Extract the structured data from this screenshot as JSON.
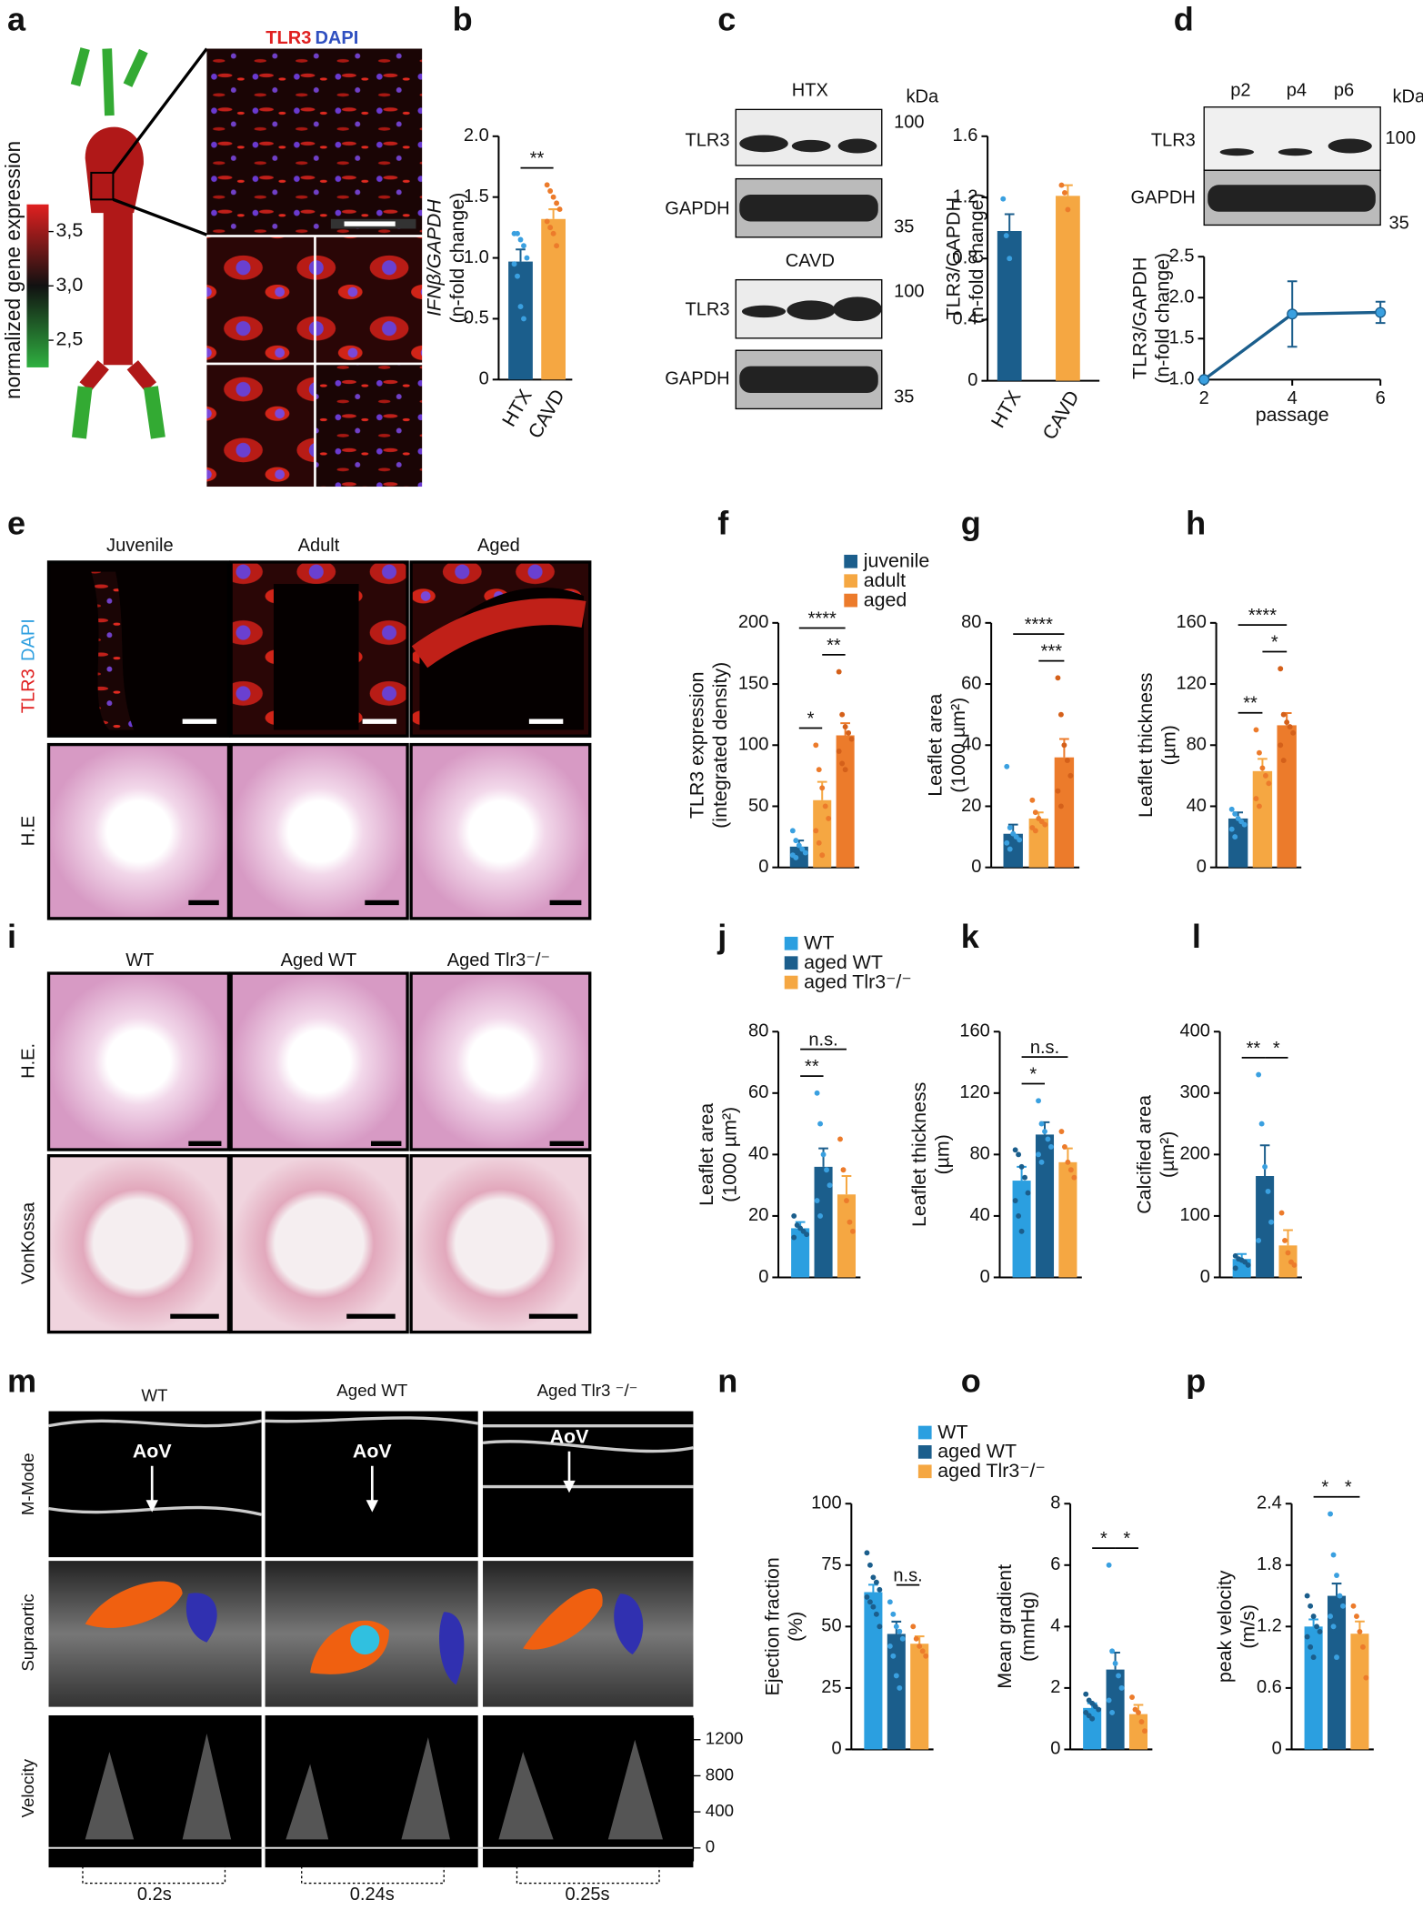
{
  "chart_data": [
    {
      "type": "bar",
      "categories": [
        "HTX",
        "CAVD"
      ],
      "values": [
        0.97,
        1.32
      ],
      "errors": [
        0.1,
        0.08
      ],
      "points": [
        [
          1.2,
          1.2,
          1.15,
          1.1,
          1.0,
          0.95,
          0.85,
          0.6,
          0.5
        ],
        [
          1.6,
          1.55,
          1.5,
          1.45,
          1.4,
          1.3,
          1.25,
          1.2,
          1.1
        ]
      ],
      "colors": [
        "#1b5e8c",
        "#f5a742"
      ],
      "point_colors": [
        "#3aa0e0",
        "#ec7b2b"
      ],
      "ylabel": [
        "IFNβ/GAPDH",
        "(n-fold change)"
      ],
      "ylim": [
        0,
        2
      ],
      "yticks": [
        0,
        0.5,
        {
          "value": 1,
          "label": "1.0"
        },
        1.5,
        {
          "value": 2,
          "label": "2.0"
        }
      ],
      "significance": [
        {
          "label": "**",
          "between": [
            0,
            1
          ]
        }
      ]
    },
    {
      "type": "bar",
      "categories": [
        "HTX",
        "CAVD"
      ],
      "values": [
        0.98,
        1.21
      ],
      "errors": [
        0.11,
        0.07
      ],
      "points": [
        [
          1.19,
          0.95,
          0.8
        ],
        [
          1.28,
          1.23,
          1.12
        ]
      ],
      "colors": [
        "#1b5e8c",
        "#f5a742"
      ],
      "point_colors": [
        "#3aa0e0",
        "#ec7b2b"
      ],
      "ylabel": [
        "TLR3/GAPDH",
        "(n-fold change)"
      ],
      "ylim": [
        0,
        1.6
      ],
      "yticks": [
        0,
        0.4,
        0.8,
        1.2,
        1.6
      ]
    },
    {
      "type": "line",
      "x": [
        2,
        4,
        6
      ],
      "values": [
        1.0,
        1.8,
        1.82
      ],
      "errors": [
        0,
        0.4,
        0.13
      ],
      "color": "#1b5e8c",
      "marker_color": "#3aa0e0",
      "xlim": [
        2,
        6
      ],
      "xticks": [
        2,
        4,
        6
      ],
      "xlabel": "passage",
      "ylabel": [
        "TLR3/GAPDH",
        "(n-fold change)"
      ],
      "ylim": [
        1,
        2.5
      ],
      "yticks": [
        {
          "value": 1,
          "label": "1.0"
        },
        1.5,
        {
          "value": 2,
          "label": "2.0"
        },
        2.5
      ]
    },
    {
      "type": "bar",
      "categories": [
        "juvenile",
        "adult",
        "aged"
      ],
      "legend": true,
      "values": [
        17,
        55,
        108
      ],
      "errors": [
        5,
        15,
        10
      ],
      "points": [
        [
          30,
          22,
          18,
          15,
          12,
          10,
          8
        ],
        [
          100,
          80,
          65,
          50,
          40,
          30,
          20,
          10
        ],
        [
          160,
          125,
          115,
          110,
          105,
          95,
          85,
          80
        ]
      ],
      "colors": [
        "#1b5e8c",
        "#f5a742",
        "#ec7b2b"
      ],
      "point_colors": [
        "#3aa0e0",
        "#ec7b2b",
        "#d4601a"
      ],
      "ylabel": [
        "TLR3 expression",
        "(integrated density)"
      ],
      "ylim": [
        0,
        200
      ],
      "yticks": [
        0,
        50,
        100,
        150,
        200
      ],
      "significance": [
        {
          "label": "*",
          "between": [
            0,
            1
          ]
        },
        {
          "label": "**",
          "between": [
            1,
            2
          ]
        },
        {
          "label": "****",
          "between": [
            0,
            2
          ]
        }
      ]
    },
    {
      "type": "bar",
      "values": [
        11,
        16,
        36
      ],
      "errors": [
        3,
        2,
        6
      ],
      "points": [
        [
          33,
          13,
          11,
          10,
          9,
          8,
          6
        ],
        [
          22,
          18,
          16,
          15,
          14,
          13,
          12
        ],
        [
          62,
          50,
          40,
          35,
          30,
          25,
          20
        ]
      ],
      "colors": [
        "#1b5e8c",
        "#f5a742",
        "#ec7b2b"
      ],
      "point_colors": [
        "#3aa0e0",
        "#ec7b2b",
        "#d4601a"
      ],
      "ylabel": [
        "Leaflet area",
        "(1000 µm²)"
      ],
      "ylim": [
        0,
        80
      ],
      "yticks": [
        0,
        20,
        40,
        60,
        80
      ],
      "significance": [
        {
          "label": "***",
          "between": [
            1,
            2
          ]
        },
        {
          "label": "****",
          "between": [
            0,
            2
          ]
        }
      ]
    },
    {
      "type": "bar",
      "values": [
        32,
        63,
        93
      ],
      "errors": [
        4,
        8,
        8
      ],
      "points": [
        [
          38,
          35,
          32,
          30,
          28,
          25,
          20
        ],
        [
          90,
          75,
          65,
          60,
          55,
          45,
          40
        ],
        [
          130,
          100,
          95,
          92,
          88,
          80,
          70
        ]
      ],
      "colors": [
        "#1b5e8c",
        "#f5a742",
        "#ec7b2b"
      ],
      "point_colors": [
        "#3aa0e0",
        "#ec7b2b",
        "#d4601a"
      ],
      "ylabel": [
        "Leaflet thickness",
        "(µm)"
      ],
      "ylim": [
        0,
        160
      ],
      "yticks": [
        0,
        40,
        80,
        120,
        160
      ],
      "significance": [
        {
          "label": "**",
          "between": [
            0,
            1
          ]
        },
        {
          "label": "*",
          "between": [
            1,
            2
          ]
        },
        {
          "label": "****",
          "between": [
            0,
            2
          ]
        }
      ]
    },
    {
      "type": "bar",
      "categories": [
        "WT",
        "aged WT",
        "aged Tlr3⁻/⁻"
      ],
      "legend": true,
      "values": [
        16,
        36,
        27
      ],
      "errors": [
        2,
        6,
        6
      ],
      "points": [
        [
          20,
          17,
          16,
          15,
          14,
          13
        ],
        [
          60,
          50,
          40,
          35,
          30,
          25,
          20
        ],
        [
          45,
          35,
          25,
          18,
          15
        ]
      ],
      "colors": [
        "#2b9fe0",
        "#1b5e8c",
        "#f5a742"
      ],
      "point_colors": [
        "#1b5e8c",
        "#3aa0e0",
        "#ec7b2b"
      ],
      "ylabel": [
        "Leaflet area",
        "(1000 µm²)"
      ],
      "ylim": [
        0,
        80
      ],
      "yticks": [
        0,
        20,
        40,
        60,
        80
      ],
      "significance": [
        {
          "label": "**",
          "between": [
            0,
            1
          ]
        },
        {
          "label": "n.s.",
          "between": [
            0,
            2
          ]
        }
      ]
    },
    {
      "type": "bar",
      "values": [
        63,
        93,
        75
      ],
      "errors": [
        9,
        8,
        9
      ],
      "points": [
        [
          83,
          80,
          72,
          65,
          55,
          50,
          40,
          30
        ],
        [
          115,
          100,
          95,
          90,
          85,
          80,
          75
        ],
        [
          95,
          85,
          75,
          70,
          65
        ]
      ],
      "colors": [
        "#2b9fe0",
        "#1b5e8c",
        "#f5a742"
      ],
      "point_colors": [
        "#1b5e8c",
        "#3aa0e0",
        "#ec7b2b"
      ],
      "ylabel": [
        "Leaflet thickness",
        "(µm)"
      ],
      "ylim": [
        0,
        160
      ],
      "yticks": [
        0,
        40,
        80,
        120,
        160
      ],
      "significance": [
        {
          "label": "*",
          "between": [
            0,
            1
          ]
        },
        {
          "label": "n.s.",
          "between": [
            0,
            2
          ]
        }
      ]
    },
    {
      "type": "bar",
      "values": [
        30,
        165,
        52
      ],
      "errors": [
        8,
        50,
        25
      ],
      "points": [
        [
          35,
          30,
          28,
          25,
          20,
          15
        ],
        [
          330,
          250,
          180,
          140,
          90,
          60
        ],
        [
          105,
          60,
          40,
          25,
          20
        ]
      ],
      "colors": [
        "#2b9fe0",
        "#1b5e8c",
        "#f5a742"
      ],
      "point_colors": [
        "#1b5e8c",
        "#3aa0e0",
        "#ec7b2b"
      ],
      "ylabel": [
        "Calcified area",
        "(µm²)"
      ],
      "ylim": [
        0,
        400
      ],
      "yticks": [
        0,
        100,
        200,
        300,
        400
      ],
      "significance": [
        {
          "label": "**",
          "between": [
            0,
            1
          ]
        },
        {
          "label": "*",
          "between": [
            1,
            2
          ]
        }
      ]
    },
    {
      "type": "bar",
      "categories": [
        "WT",
        "aged WT",
        "aged Tlr3⁻/⁻"
      ],
      "legend": true,
      "values": [
        64,
        47,
        43
      ],
      "errors": [
        3,
        5,
        3
      ],
      "points": [
        [
          80,
          75,
          70,
          68,
          65,
          62,
          60,
          58,
          55,
          50
        ],
        [
          60,
          55,
          50,
          48,
          45,
          42,
          38,
          30,
          25
        ],
        [
          50,
          45,
          42,
          40,
          38
        ]
      ],
      "colors": [
        "#2b9fe0",
        "#1b5e8c",
        "#f5a742"
      ],
      "point_colors": [
        "#1b5e8c",
        "#3aa0e0",
        "#ec7b2b"
      ],
      "ylabel": [
        "Ejection fraction",
        "(%)"
      ],
      "ylim": [
        0,
        100
      ],
      "yticks": [
        0,
        25,
        50,
        75,
        100
      ],
      "significance": [
        {
          "label": "n.s.",
          "between": [
            1,
            2
          ]
        }
      ]
    },
    {
      "type": "bar",
      "values": [
        1.35,
        2.6,
        1.15
      ],
      "errors": [
        0.15,
        0.55,
        0.3
      ],
      "points": [
        [
          1.8,
          1.6,
          1.5,
          1.4,
          1.3,
          1.2,
          1.1,
          1.0
        ],
        [
          6.0,
          3.2,
          2.8,
          2.4,
          2.0,
          1.6,
          1.2
        ],
        [
          1.7,
          1.3,
          1.2,
          0.9,
          0.6
        ]
      ],
      "colors": [
        "#2b9fe0",
        "#1b5e8c",
        "#f5a742"
      ],
      "point_colors": [
        "#1b5e8c",
        "#3aa0e0",
        "#ec7b2b"
      ],
      "ylabel": [
        "Mean gradient",
        "(mmHg)"
      ],
      "ylim": [
        0,
        8
      ],
      "yticks": [
        0,
        2,
        4,
        6,
        8
      ],
      "significance": [
        {
          "label": "*",
          "between": [
            0,
            1
          ]
        },
        {
          "label": "*",
          "between": [
            1,
            2
          ]
        }
      ]
    },
    {
      "type": "bar",
      "values": [
        1.2,
        1.5,
        1.13
      ],
      "errors": [
        0.07,
        0.12,
        0.12
      ],
      "points": [
        [
          1.5,
          1.4,
          1.3,
          1.2,
          1.15,
          1.1,
          1.0,
          0.9
        ],
        [
          2.3,
          1.9,
          1.7,
          1.5,
          1.4,
          1.3,
          1.2,
          0.9
        ],
        [
          1.4,
          1.3,
          1.15,
          1.0,
          0.7
        ]
      ],
      "colors": [
        "#2b9fe0",
        "#1b5e8c",
        "#f5a742"
      ],
      "point_colors": [
        "#1b5e8c",
        "#3aa0e0",
        "#ec7b2b"
      ],
      "ylabel": [
        "peak velocity",
        "(m/s)"
      ],
      "ylim": [
        0,
        2.4
      ],
      "yticks": [
        0,
        0.6,
        1.2,
        1.8,
        2.4
      ],
      "significance": [
        {
          "label": "*",
          "between": [
            0,
            1
          ]
        },
        {
          "label": "*",
          "between": [
            1,
            2
          ]
        }
      ]
    }
  ],
  "figure": {
    "panels": [
      "a",
      "b",
      "c",
      "d",
      "e",
      "f",
      "g",
      "h",
      "i",
      "j",
      "k",
      "l",
      "m",
      "n",
      "o",
      "p"
    ],
    "a": {
      "stain": [
        "TLR3",
        "DAPI"
      ],
      "colorbar_label": "normalized gene expression",
      "colorbar": {
        "lim": [
          2.25,
          3.75
        ],
        "ticks": [
          {
            "value": 3.5,
            "label": "3,5"
          },
          {
            "value": 3.0,
            "label": "3,0"
          },
          {
            "value": 2.5,
            "label": "2,5"
          }
        ]
      }
    },
    "c": {
      "groups": [
        "HTX",
        "CAVD"
      ],
      "bands": [
        "TLR3",
        "GAPDH"
      ],
      "unit": "kDa",
      "markers": [
        "100",
        "35"
      ]
    },
    "d": {
      "lanes": [
        "p2",
        "p4",
        "p6"
      ],
      "bands": [
        "TLR3",
        "GAPDH"
      ],
      "unit": "kDa",
      "markers": [
        "100",
        "35"
      ]
    },
    "e": {
      "columns": [
        "Juvenile",
        "Adult",
        "Aged"
      ],
      "stain": [
        "TLR3",
        "DAPI"
      ],
      "row": "H.E"
    },
    "i": {
      "columns": [
        "WT",
        "Aged WT",
        "Aged Tlr3⁻/⁻"
      ],
      "rows": [
        "H.E.",
        "VonKossa"
      ]
    },
    "m": {
      "columns": [
        "WT",
        "Aged WT",
        "Aged Tlr3 ⁻/⁻"
      ],
      "rows": [
        "M-Mode",
        "Supraortic",
        "Velocity"
      ],
      "arrow": "AoV",
      "intervals": [
        "0.2s",
        "0.24s",
        "0.25s"
      ],
      "velocity_lim": [
        0,
        1200
      ],
      "velocity_ticks": [
        0,
        400,
        800,
        1200
      ]
    }
  }
}
